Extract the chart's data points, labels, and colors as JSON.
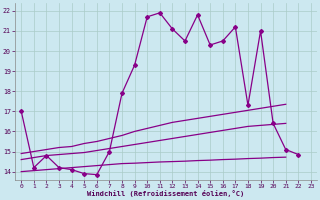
{
  "xlabel": "Windchill (Refroidissement éolien,°C)",
  "background_color": "#cce8f0",
  "grid_color": "#aaccc8",
  "line_color": "#880088",
  "x_hours": [
    0,
    1,
    2,
    3,
    4,
    5,
    6,
    7,
    8,
    9,
    10,
    11,
    12,
    13,
    14,
    15,
    16,
    17,
    18,
    19,
    20,
    21,
    22,
    23
  ],
  "line_main_y": [
    17.0,
    14.2,
    14.8,
    14.2,
    14.1,
    13.9,
    13.85,
    15.0,
    17.9,
    19.3,
    21.7,
    21.9,
    21.1,
    20.5,
    21.8,
    20.3,
    20.5,
    21.2,
    17.3,
    21.0,
    16.4,
    15.1,
    14.85,
    null
  ],
  "line_upper_y": [
    14.9,
    15.0,
    15.1,
    15.2,
    15.25,
    15.4,
    15.5,
    15.65,
    15.8,
    16.0,
    16.15,
    16.3,
    16.45,
    16.55,
    16.65,
    16.75,
    16.85,
    16.95,
    17.05,
    17.15,
    17.25,
    17.35,
    null,
    null
  ],
  "line_middle_y": [
    14.6,
    14.7,
    14.8,
    14.85,
    14.9,
    14.95,
    15.05,
    15.15,
    15.25,
    15.35,
    15.45,
    15.55,
    15.65,
    15.75,
    15.85,
    15.95,
    16.05,
    16.15,
    16.25,
    16.3,
    16.35,
    16.4,
    null,
    null
  ],
  "line_lower_y": [
    14.0,
    14.05,
    14.1,
    14.15,
    14.2,
    14.25,
    14.3,
    14.35,
    14.4,
    14.42,
    14.45,
    14.48,
    14.5,
    14.52,
    14.55,
    14.57,
    14.6,
    14.62,
    14.65,
    14.67,
    14.7,
    14.72,
    null,
    null
  ],
  "ylim": [
    13.6,
    22.4
  ],
  "xlim": [
    -0.5,
    23.5
  ],
  "yticks": [
    14,
    15,
    16,
    17,
    18,
    19,
    20,
    21,
    22
  ],
  "xticks": [
    0,
    1,
    2,
    3,
    4,
    5,
    6,
    7,
    8,
    9,
    10,
    11,
    12,
    13,
    14,
    15,
    16,
    17,
    18,
    19,
    20,
    21,
    22,
    23
  ]
}
